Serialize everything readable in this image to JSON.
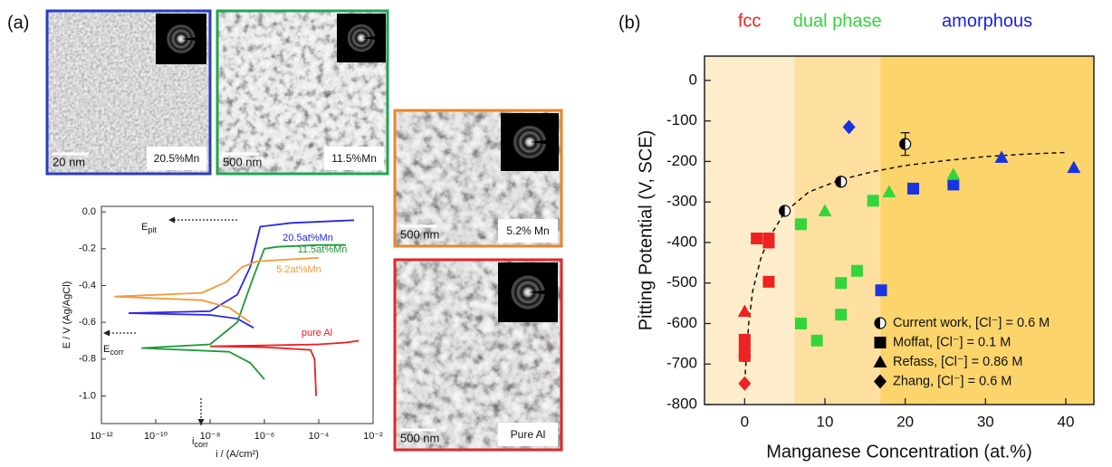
{
  "panel_labels": [
    "(a)",
    "(b)"
  ],
  "micrographs": [
    {
      "scale_bar": "20 nm",
      "label": "20.5%Mn",
      "color": "#2b3cc4"
    },
    {
      "scale_bar": "500 nm",
      "label": "11.5%Mn",
      "color": "#23a455"
    },
    {
      "scale_bar": "500 nm",
      "label": "5.2% Mn",
      "color": "#e8862a"
    },
    {
      "scale_bar": "500 nm",
      "label": "Pure Al",
      "color": "#e0262a"
    }
  ],
  "chart_data": [
    {
      "type": "line",
      "x_label": "i / (A/cm²)",
      "y_label": "E / V (Ag/AgCl)",
      "xlog": true,
      "xlim": [
        1e-12,
        0.01
      ],
      "xticks": [
        {
          "value": 1e-12,
          "label": "10⁻¹²"
        },
        {
          "value": 1e-10,
          "label": "10⁻¹⁰"
        },
        {
          "value": 1e-08,
          "label": "10⁻⁸"
        },
        {
          "value": 1e-06,
          "label": "10⁻⁶"
        },
        {
          "value": 0.0001,
          "label": "10⁻⁴"
        },
        {
          "value": 0.01,
          "label": "10⁻²"
        }
      ],
      "ylim": [
        -1.15,
        0.03
      ],
      "yticks": [
        {
          "value": 0,
          "label": "0.0"
        },
        -0.2,
        -0.4,
        -0.6,
        -0.8,
        {
          "value": -1,
          "label": "-1.0"
        }
      ],
      "series": [
        {
          "name": "20.5at%Mn",
          "color": "#2727e8",
          "x": [
            4e-07,
            1e-07,
            1e-08,
            1e-11,
            1e-08,
            1e-07,
            3e-07,
            7e-07,
            1e-05,
            0.002
          ],
          "values": [
            -0.63,
            -0.58,
            -0.56,
            -0.55,
            -0.54,
            -0.45,
            -0.3,
            -0.08,
            -0.06,
            -0.045
          ]
        },
        {
          "name": "11.5at%Mn",
          "color": "#1f9a3a",
          "x": [
            1e-06,
            3e-07,
            5e-08,
            3e-11,
            1e-08,
            1e-07,
            4e-07,
            1e-06,
            3e-06,
            0.0001,
            0.001
          ],
          "values": [
            -0.91,
            -0.82,
            -0.76,
            -0.74,
            -0.72,
            -0.6,
            -0.35,
            -0.2,
            -0.19,
            -0.18,
            -0.18
          ]
        },
        {
          "name": "5.2at%Mn",
          "color": "#f39a3a",
          "x": [
            3e-07,
            5e-08,
            5e-09,
            3e-12,
            5e-09,
            4e-08,
            1.5e-07,
            5e-07,
            5e-06,
            0.0001
          ],
          "values": [
            -0.6,
            -0.52,
            -0.48,
            -0.46,
            -0.44,
            -0.38,
            -0.3,
            -0.27,
            -0.26,
            -0.25
          ]
        },
        {
          "name": "pure Al",
          "color": "#ee1c1c",
          "x": [
            8e-05,
            7e-05,
            5e-05,
            1e-06,
            1e-08,
            1e-06,
            0.0001,
            0.001,
            0.003
          ],
          "values": [
            -1,
            -0.8,
            -0.75,
            -0.735,
            -0.73,
            -0.725,
            -0.72,
            -0.71,
            -0.7
          ]
        }
      ],
      "annotations": [
        {
          "main": "E",
          "sub": "pit"
        },
        {
          "main": "E",
          "sub": "corr"
        },
        {
          "main": "i",
          "sub": "corr"
        }
      ]
    },
    {
      "type": "scatter",
      "x_label": "Manganese Concentration (at.%)",
      "y_label": "Pitting Potential (V, SCE)",
      "xlim": [
        -5,
        43.5
      ],
      "xticks": [
        0,
        10,
        20,
        30,
        40
      ],
      "ylim": [
        -800,
        60
      ],
      "yticks": [
        0,
        -100,
        -200,
        -300,
        -400,
        -500,
        -600,
        -700,
        -800
      ],
      "regions": [
        {
          "label": "fcc",
          "label_color": "#ee2222",
          "from": -5,
          "to": 6.2,
          "color": "#fdedcb"
        },
        {
          "label": "dual phase",
          "label_color": "#33d63a",
          "from": 6.2,
          "to": 16.9,
          "color": "#fde0a0"
        },
        {
          "label": "amorphous",
          "label_color": "#1a1ee6",
          "from": 16.9,
          "to": 43.5,
          "color": "#fcd46c"
        }
      ],
      "fit": {
        "x": [
          0,
          0.5,
          1,
          2,
          3,
          5,
          8,
          12,
          16,
          20,
          25,
          30,
          35,
          40
        ],
        "values": [
          -745,
          -600,
          -520,
          -440,
          -390,
          -325,
          -275,
          -245,
          -225,
          -210,
          -198,
          -188,
          -182,
          -178
        ]
      },
      "legend": "lower right",
      "series": [
        {
          "name": "Current work, [Cl⁻] = 0.6 M",
          "marker": "half-circle",
          "color": "#000000",
          "x": [
            0,
            5,
            12,
            20
          ],
          "values": [
            -680,
            -322,
            -250,
            -157
          ],
          "errors": [
            10,
            8,
            10,
            28
          ],
          "colors": [
            "#000000",
            "#000000",
            "#000000",
            "#000000"
          ]
        },
        {
          "name": "Moffat, [Cl⁻] = 0.1 M",
          "marker": "square",
          "color": "#000000",
          "x": [
            1.5,
            3,
            3,
            3,
            0,
            0,
            0,
            7,
            12,
            14,
            12,
            7,
            9,
            16,
            17,
            21,
            26
          ],
          "values": [
            -390,
            -390,
            -400,
            -497,
            -640,
            -660,
            -680,
            -355,
            -500,
            -470,
            -578,
            -600,
            -642,
            -297,
            -518,
            -267,
            -257
          ],
          "colors": [
            "#ee2222",
            "#ee2222",
            "#ee2222",
            "#ee2222",
            "#ee2222",
            "#ee2222",
            "#ee2222",
            "#33d63a",
            "#33d63a",
            "#33d63a",
            "#33d63a",
            "#33d63a",
            "#33d63a",
            "#33d63a",
            "#1a33e0",
            "#1a33e0",
            "#1a33e0"
          ]
        },
        {
          "name": "Refass, [Cl⁻] = 0.86 M",
          "marker": "triangle",
          "color": "#000000",
          "x": [
            0,
            10,
            18,
            26,
            32,
            41
          ],
          "values": [
            -570,
            -322,
            -275,
            -232,
            -190,
            -215
          ],
          "colors": [
            "#ee2222",
            "#33d63a",
            "#33d63a",
            "#33d63a",
            "#1a33e0",
            "#1a33e0"
          ]
        },
        {
          "name": "Zhang, [Cl⁻] = 0.6 M",
          "marker": "diamond",
          "color": "#000000",
          "x": [
            0,
            13
          ],
          "values": [
            -748,
            -115
          ],
          "colors": [
            "#ee2222",
            "#1a33e0"
          ]
        }
      ]
    }
  ]
}
